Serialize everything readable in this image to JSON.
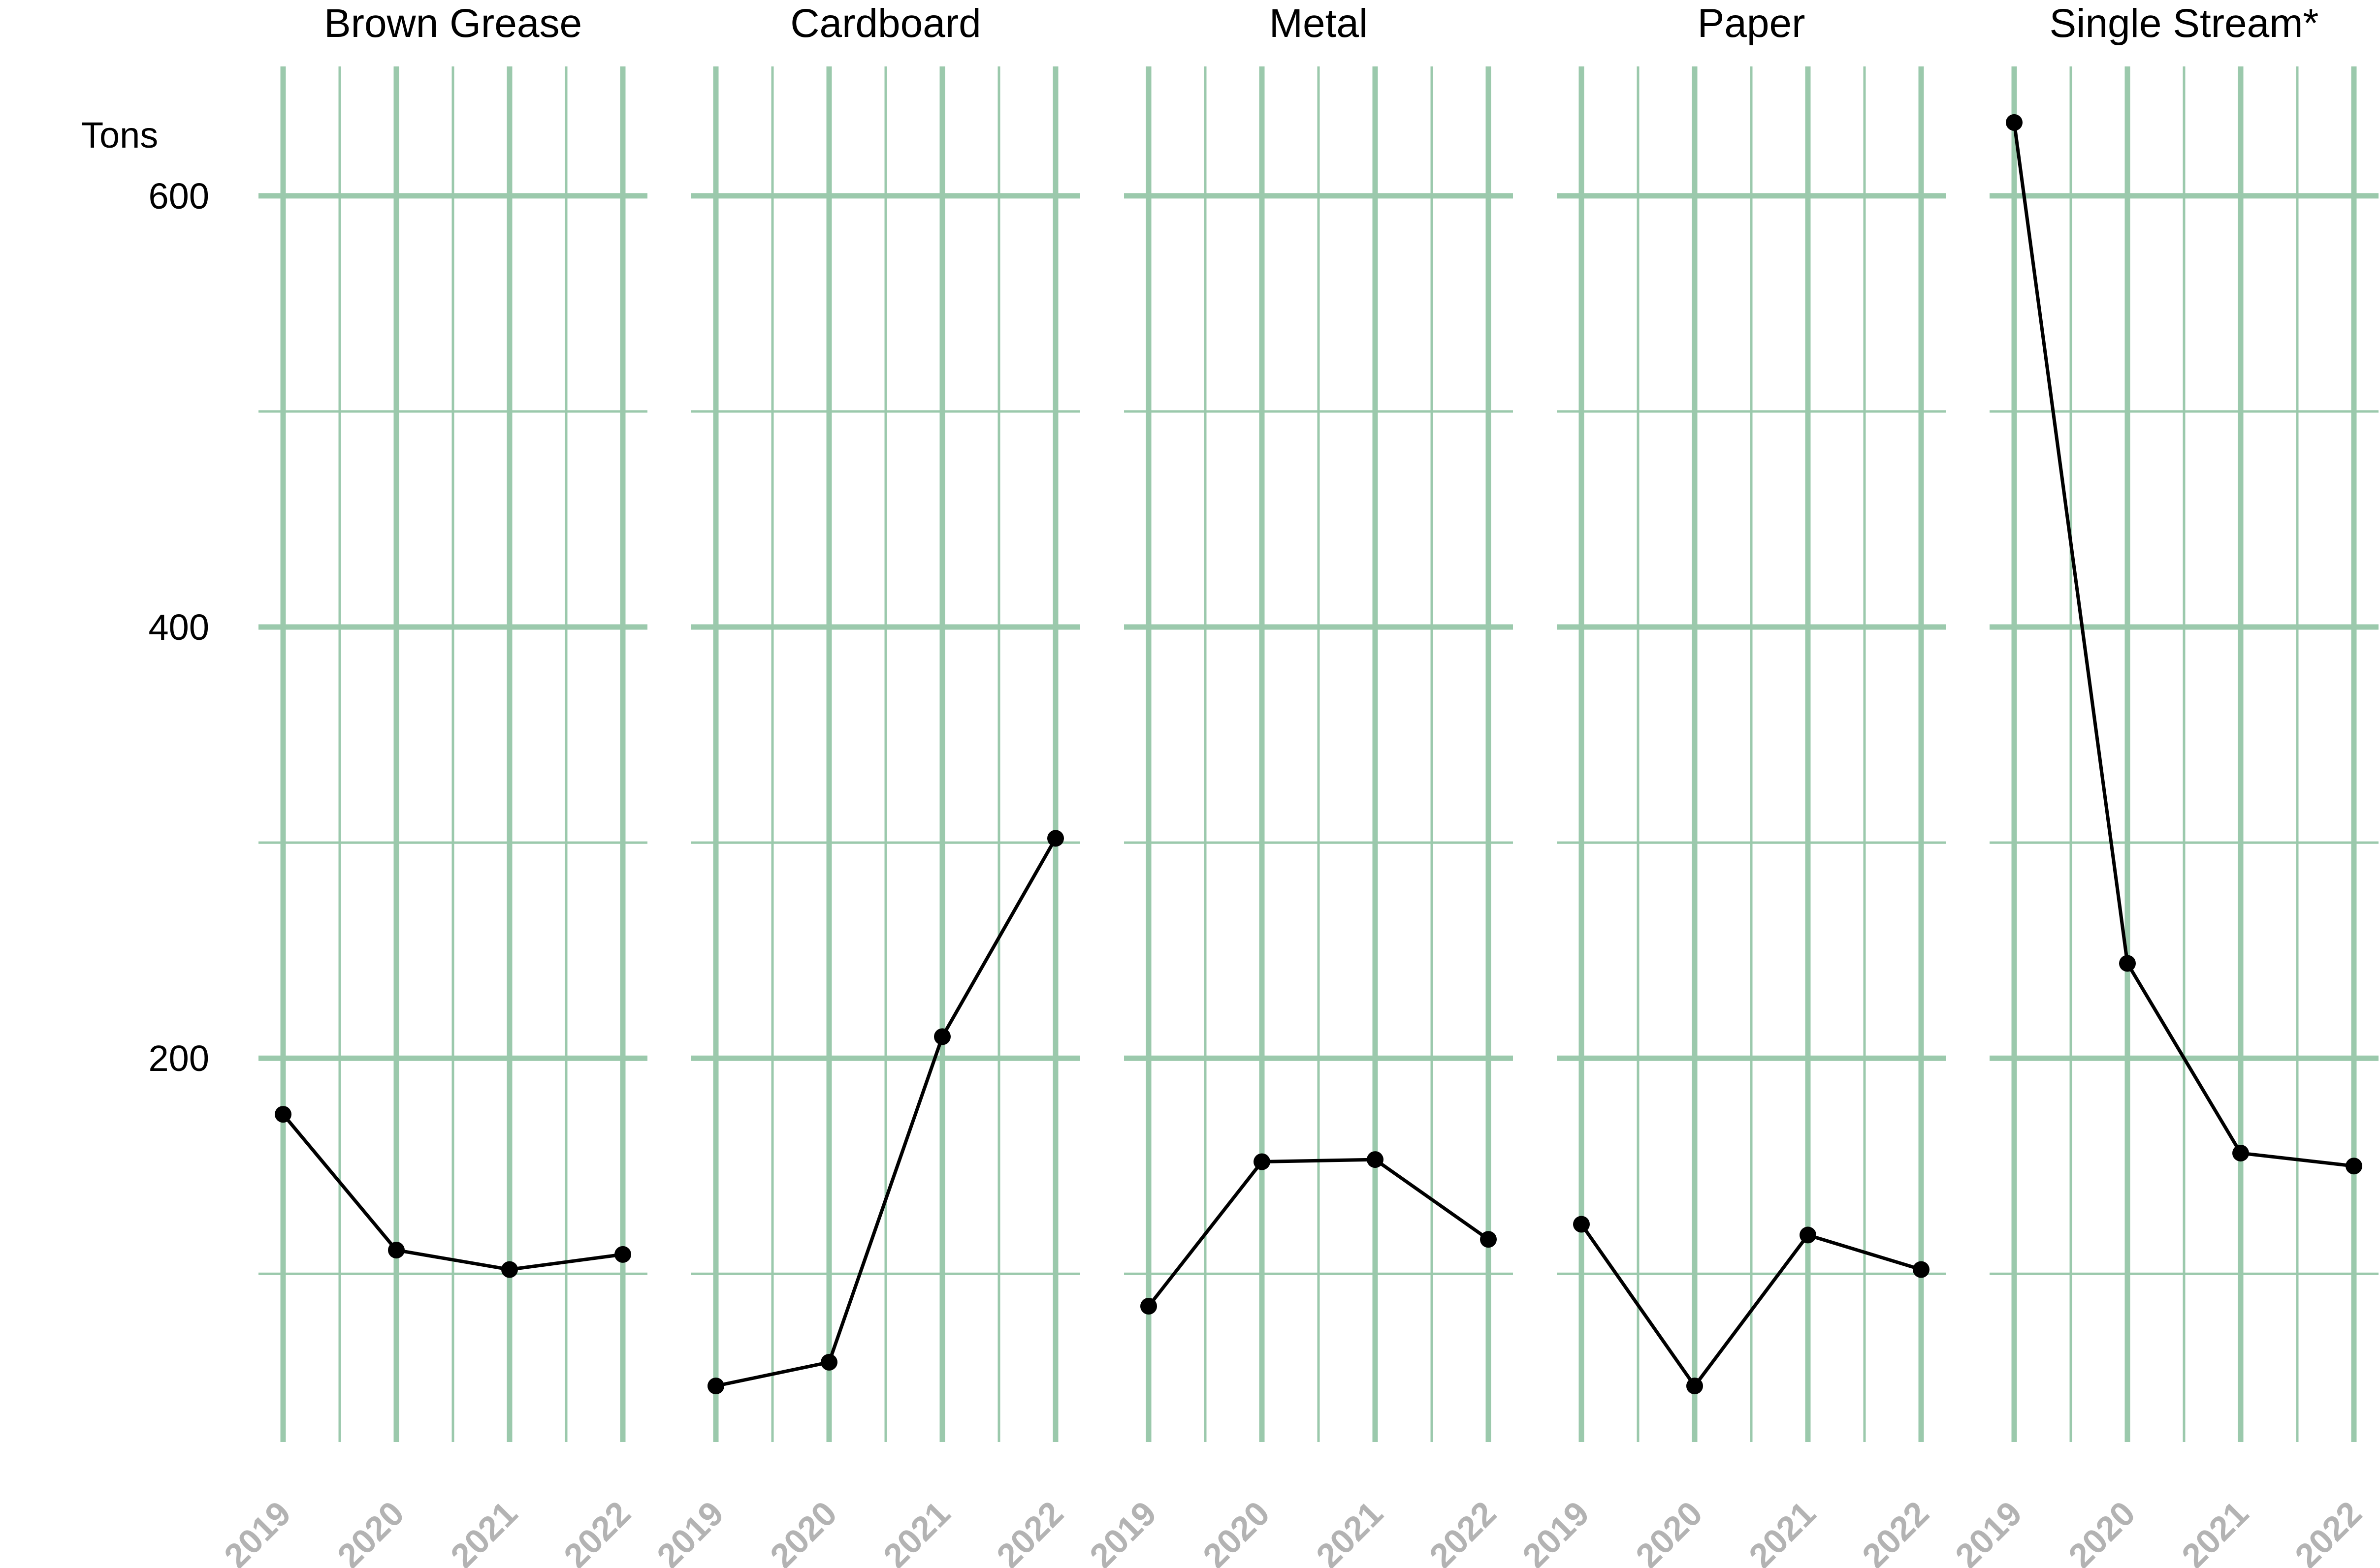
{
  "chart_data": {
    "type": "line",
    "layout": "small-multiples",
    "ylabel": "Tons",
    "xlabel": "",
    "categories": [
      "2019",
      "2020",
      "2021",
      "2022"
    ],
    "ylim": [
      22,
      660
    ],
    "yticks": [
      200,
      400,
      600
    ],
    "grid": true,
    "colors": {
      "grid": "#9bc9ac",
      "line": "#000000",
      "x_tick_text": "#b3b3b3",
      "text": "#000000"
    },
    "series": [
      {
        "name": "Brown Grease",
        "values": [
          174,
          111,
          102,
          109
        ]
      },
      {
        "name": "Cardboard",
        "values": [
          48,
          59,
          210,
          302
        ]
      },
      {
        "name": "Metal",
        "values": [
          85,
          152,
          153,
          116
        ]
      },
      {
        "name": "Paper",
        "values": [
          123,
          48,
          118,
          102
        ]
      },
      {
        "name": "Single Stream*",
        "values": [
          634,
          244,
          156,
          150
        ]
      }
    ]
  }
}
